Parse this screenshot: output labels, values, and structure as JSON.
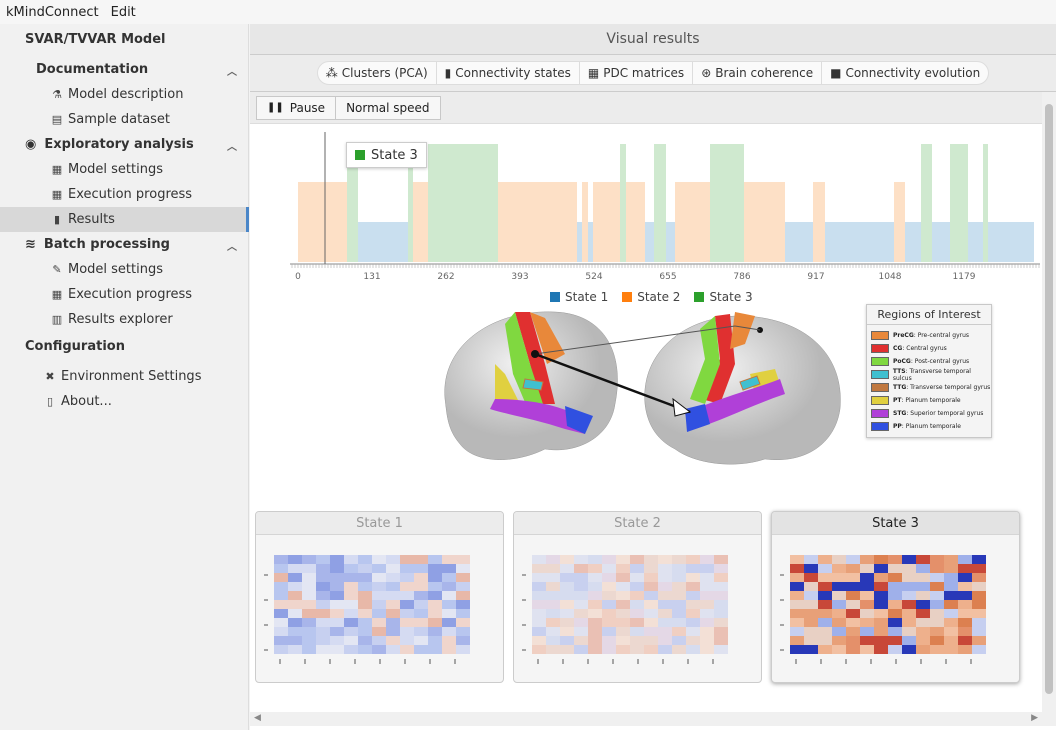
{
  "menu": {
    "app": "kMindConnect",
    "edit": "Edit"
  },
  "sidebar": {
    "title": "SVAR/TVVAR Model",
    "documentation": {
      "label": "Documentation",
      "items": [
        "Model description",
        "Sample dataset"
      ]
    },
    "exploratory": {
      "label": "Exploratory analysis",
      "items": [
        "Model settings",
        "Execution progress",
        "Results"
      ]
    },
    "batch": {
      "label": "Batch processing",
      "items": [
        "Model settings",
        "Execution progress",
        "Results explorer"
      ]
    },
    "configuration": {
      "label": "Configuration",
      "items": [
        "Environment Settings",
        "About..."
      ]
    }
  },
  "main": {
    "title": "Visual results",
    "tabs": [
      "Clusters (PCA)",
      "Connectivity states",
      "PDC matrices",
      "Brain coherence",
      "Connectivity evolution"
    ],
    "controls": {
      "pause": "Pause",
      "speed": "Normal speed"
    }
  },
  "timeline": {
    "tooltip": "State 3",
    "ticks": [
      "0",
      "131",
      "262",
      "393",
      "524",
      "655",
      "786",
      "917",
      "1048",
      "1179"
    ],
    "legend": [
      "State 1",
      "State 2",
      "State 3"
    ],
    "colors": {
      "state1": "#1f77b4",
      "state2": "#ff7f0e",
      "state3": "#2ca02c"
    }
  },
  "roi": {
    "title": "Regions of Interest",
    "items": [
      {
        "abbr": "PreCG",
        "name": ": Pre-central gyrus",
        "color": "#e8883a"
      },
      {
        "abbr": "CG",
        "name": ": Central gyrus",
        "color": "#e03030"
      },
      {
        "abbr": "PoCG",
        "name": ": Post-central gyrus",
        "color": "#80d840"
      },
      {
        "abbr": "TTS",
        "name": ": Transverse temporal sulcus",
        "color": "#40c0d0"
      },
      {
        "abbr": "TTG",
        "name": ": Transverse temporal gyrus",
        "color": "#c07840"
      },
      {
        "abbr": "PT",
        "name": ": Planum temporale",
        "color": "#e0d040"
      },
      {
        "abbr": "STG",
        "name": ": Superior temporal gyrus",
        "color": "#b040d8"
      },
      {
        "abbr": "PP",
        "name": ": Planum temporale",
        "color": "#3050e0"
      }
    ]
  },
  "states": [
    "State 1",
    "State 2",
    "State 3"
  ]
}
